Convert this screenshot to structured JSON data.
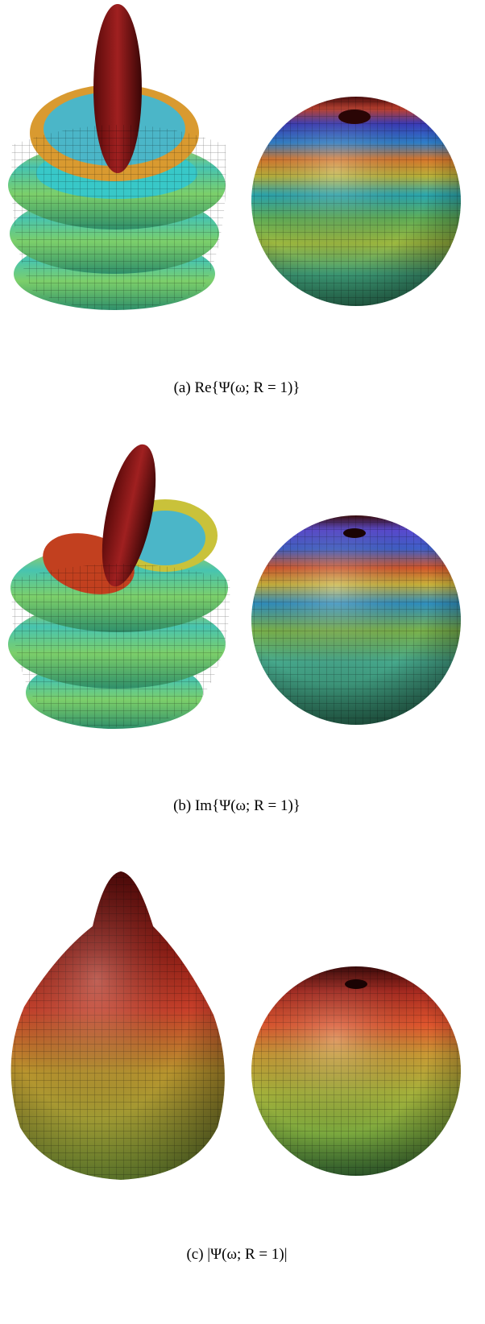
{
  "subfigures": [
    {
      "caption": "(a) Re{Ψ(ω; R = 1)}"
    },
    {
      "caption": "(b) Im{Ψ(ω; R = 1)}"
    },
    {
      "caption": "(c) |Ψ(ω; R = 1)|"
    }
  ]
}
